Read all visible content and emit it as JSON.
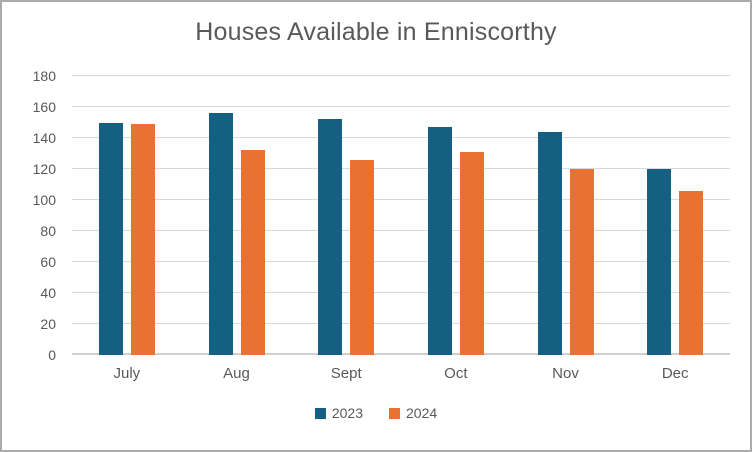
{
  "window": {
    "background": "#ffffff",
    "border_color": "#ababab"
  },
  "text_color": "#595959",
  "gridline_color": "#d9d9d9",
  "chart_data": {
    "type": "bar",
    "title": "Houses Available in Enniscorthy",
    "categories": [
      "July",
      "Aug",
      "Sept",
      "Oct",
      "Nov",
      "Dec"
    ],
    "series": [
      {
        "name": "2023",
        "color": "#156082",
        "values": [
          150,
          156,
          152,
          147,
          144,
          120
        ]
      },
      {
        "name": "2024",
        "color": "#E97132",
        "values": [
          149,
          132,
          126,
          131,
          120,
          106
        ]
      }
    ],
    "xlabel": "",
    "ylabel": "",
    "ylim": [
      0,
      180
    ],
    "yticks": [
      0,
      20,
      40,
      60,
      80,
      100,
      120,
      140,
      160,
      180
    ],
    "grid": "horizontal",
    "legend_position": "bottom"
  }
}
